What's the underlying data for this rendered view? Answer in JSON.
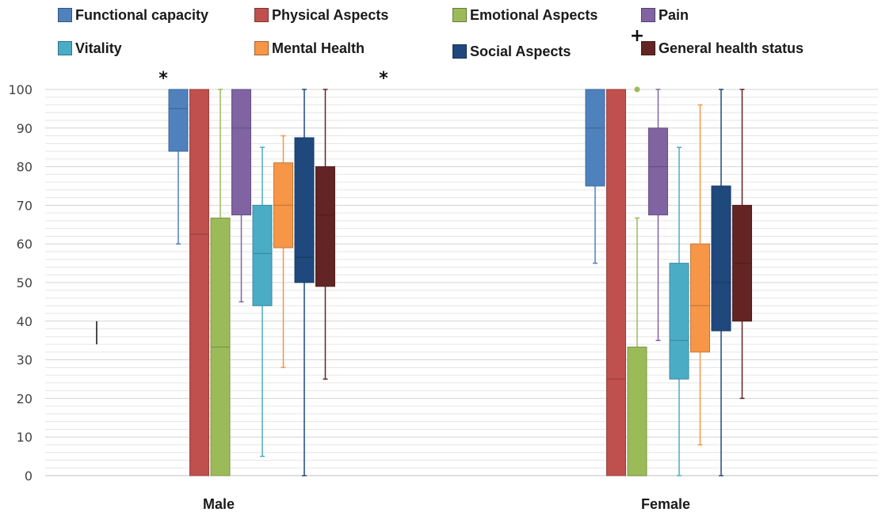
{
  "chart_data": {
    "type": "boxplot",
    "categories": [
      "Male",
      "Female"
    ],
    "y_ticks": [
      "0",
      "10",
      "20",
      "30",
      "40",
      "50",
      "60",
      "70",
      "80",
      "90",
      "100"
    ],
    "ylim": [
      0,
      100
    ],
    "grid": "horizontal minor lines every 2 units",
    "legend_placement": "top",
    "series": [
      {
        "name": "Functional capacity",
        "color": "#4f81bd",
        "boxes": [
          {
            "min": 60,
            "q1": 84,
            "median": 95,
            "q3": 100,
            "max": 100
          },
          {
            "min": 55,
            "q1": 75,
            "median": 90,
            "q3": 100,
            "max": 100
          }
        ]
      },
      {
        "name": "Physical Aspects",
        "color": "#c0504d",
        "boxes": [
          {
            "min": 0,
            "q1": 0,
            "median": 62.5,
            "q3": 100,
            "max": 100
          },
          {
            "min": 0,
            "q1": 0,
            "median": 25,
            "q3": 100,
            "max": 100
          }
        ]
      },
      {
        "name": "Emotional Aspects",
        "color": "#9bbb59",
        "boxes": [
          {
            "min": 0,
            "q1": 0,
            "median": 33.3,
            "q3": 66.7,
            "max": 100
          },
          {
            "min": 0,
            "q1": 0,
            "median": 0,
            "q3": 33.3,
            "max": 66.7
          }
        ]
      },
      {
        "name": "Pain",
        "color": "#8064a2",
        "boxes": [
          {
            "min": 45,
            "q1": 67.5,
            "median": 90,
            "q3": 100,
            "max": 100
          },
          {
            "min": 35,
            "q1": 67.5,
            "median": 80,
            "q3": 90,
            "max": 100
          }
        ]
      },
      {
        "name": "Vitality",
        "color": "#4bacc6",
        "boxes": [
          {
            "min": 5,
            "q1": 44,
            "median": 57.5,
            "q3": 70,
            "max": 85
          },
          {
            "min": 0,
            "q1": 25,
            "median": 35,
            "q3": 55,
            "max": 85
          }
        ]
      },
      {
        "name": "Mental Health",
        "color": "#f79646",
        "boxes": [
          {
            "min": 28,
            "q1": 59,
            "median": 70,
            "q3": 81,
            "max": 88
          },
          {
            "min": 8,
            "q1": 32,
            "median": 44,
            "q3": 60,
            "max": 96
          }
        ]
      },
      {
        "name": "Social Aspects",
        "color": "#1f497d",
        "boxes": [
          {
            "min": 0,
            "q1": 50,
            "median": 56.5,
            "q3": 87.5,
            "max": 100
          },
          {
            "min": 0,
            "q1": 37.5,
            "median": 50,
            "q3": 75,
            "max": 100
          }
        ]
      },
      {
        "name": "General health status",
        "color": "#632523",
        "boxes": [
          {
            "min": 25,
            "q1": 49,
            "median": 67.5,
            "q3": 80,
            "max": 100
          },
          {
            "min": 20,
            "q1": 40,
            "median": 55,
            "q3": 70,
            "max": 100
          }
        ]
      }
    ],
    "outliers": [
      {
        "series": "Emotional Aspects",
        "category": "Female",
        "value": 100
      }
    ],
    "annotations": [
      {
        "text": "*",
        "near": "Male Functional capacity",
        "value": 102.5
      },
      {
        "text": "*",
        "near": "right of Male group",
        "value": 102.5
      },
      {
        "text": "+",
        "near": "legend General health status"
      }
    ]
  }
}
